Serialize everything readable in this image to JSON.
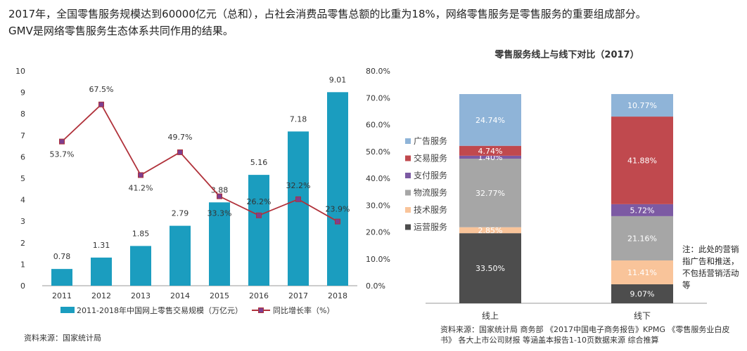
{
  "intro": {
    "line1": "2017年，全国零售服务规模达到60000亿元（总和），占社会消费品零售总额的比重为18%，网络零售服务是零售服务的重要组成部分。",
    "line2": "GMV是网络零售服务生态体系共同作用的结果。"
  },
  "colors": {
    "bar": "#1b9dbf",
    "line": "#b0313a",
    "marker": "#7d3f8f",
    "ad": "#8fb4d8",
    "trade": "#c0494e",
    "payment": "#7c5aa3",
    "logistics": "#a6a6a6",
    "tech": "#f9c49a",
    "ops": "#4d4d4d"
  },
  "chart_data": [
    {
      "type": "bar",
      "categories": [
        "2011",
        "2012",
        "2013",
        "2014",
        "2015",
        "2016",
        "2017",
        "2018"
      ],
      "series": [
        {
          "name": "2011-2018年中国网上零售交易规模（万亿元）",
          "type": "bar",
          "axis": "left",
          "values": [
            0.78,
            1.31,
            1.85,
            2.79,
            3.88,
            5.16,
            7.18,
            9.01
          ],
          "labels": [
            "0.78",
            "1.31",
            "1.85",
            "2.79",
            "3.88",
            "5.16",
            "7.18",
            "9.01"
          ]
        },
        {
          "name": "同比增长率（%）",
          "type": "line",
          "axis": "right",
          "values": [
            53.7,
            67.5,
            41.2,
            49.7,
            33.3,
            26.2,
            32.2,
            23.9
          ],
          "labels": [
            "53.7%",
            "67.5%",
            "41.2%",
            "49.7%",
            "33.3%",
            "26.2%",
            "32.2%",
            "23.9%"
          ]
        }
      ],
      "ylim": [
        0,
        10
      ],
      "y_ticks": [
        "0",
        "1",
        "2",
        "3",
        "4",
        "5",
        "6",
        "7",
        "8",
        "9",
        "10"
      ],
      "y2lim": [
        0,
        80
      ],
      "y2_ticks": [
        "0.0%",
        "10.0%",
        "20.0%",
        "30.0%",
        "40.0%",
        "50.0%",
        "60.0%",
        "70.0%",
        "80.0%"
      ],
      "grid": false,
      "legend_position": "bottom",
      "source": "资料来源：国家统计局"
    },
    {
      "type": "bar",
      "stacked": true,
      "percent": true,
      "title": "零售服务线上与线下对比（2017）",
      "categories": [
        "线上",
        "线下"
      ],
      "series": [
        {
          "name": "运营服务",
          "values": [
            33.5,
            9.07
          ],
          "labels": [
            "33.50%",
            "9.07%"
          ],
          "color_key": "ops"
        },
        {
          "name": "技术服务",
          "values": [
            2.85,
            11.41
          ],
          "labels": [
            "2.85%",
            "11.41%"
          ],
          "color_key": "tech"
        },
        {
          "name": "物流服务",
          "values": [
            32.77,
            21.16
          ],
          "labels": [
            "32.77%",
            "21.16%"
          ],
          "color_key": "logistics"
        },
        {
          "name": "支付服务",
          "values": [
            1.4,
            5.72
          ],
          "labels": [
            "1.40%",
            "5.72%"
          ],
          "color_key": "payment"
        },
        {
          "name": "交易服务",
          "values": [
            4.74,
            41.88
          ],
          "labels": [
            "4.74%",
            "41.88%"
          ],
          "color_key": "trade"
        },
        {
          "name": "广告服务",
          "values": [
            24.74,
            10.77
          ],
          "labels": [
            "24.74%",
            "10.77%"
          ],
          "color_key": "ad"
        }
      ],
      "legend_order": [
        "广告服务",
        "交易服务",
        "支付服务",
        "物流服务",
        "技术服务",
        "运营服务"
      ],
      "legend_position": "left",
      "note": "注：此处的营销指广告和推送，不包括营销活动等",
      "source": "资料来源：国家统计局 商务部 《2017中国电子商务报告》KPMG 《零售服务业白皮书》 各大上市公司财报 等涵盖本报告1-10页数据来源 综合推算"
    }
  ]
}
